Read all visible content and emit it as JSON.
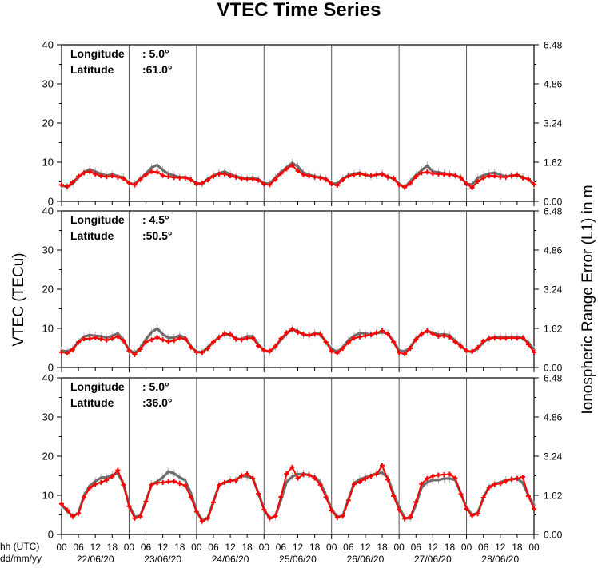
{
  "title": "VTEC Time Series",
  "left_axis_label": "VTEC (TECu)",
  "right_axis_label": "Ionospheric Range Error (L1) in m",
  "x_axis_caption_top": "hh (UTC)",
  "x_axis_caption_bottom": "dd/mm/yy",
  "chart_data": [
    {
      "type": "line",
      "panel": 1,
      "longitude_label": "Longitude",
      "longitude_value": ":   5.0°",
      "latitude_label": "Latitude",
      "latitude_value": ":61.0°",
      "ylim": [
        0,
        40
      ],
      "y_ticks": [
        "0",
        "10",
        "20",
        "30",
        "40"
      ],
      "right_ticks": [
        "0.00",
        "1.62",
        "3.24",
        "4.86",
        "6.48"
      ],
      "xlim_hours": [
        0,
        168
      ],
      "hour_ticks": [
        "00",
        "06",
        "12",
        "18",
        "00",
        "06",
        "12",
        "18",
        "00",
        "06",
        "12",
        "18",
        "00",
        "06",
        "12",
        "18",
        "00",
        "06",
        "12",
        "18",
        "00",
        "06",
        "12",
        "18",
        "00",
        "06",
        "12",
        "18",
        "00"
      ],
      "day_labels": [
        "22/06/20",
        "23/06/20",
        "24/06/20",
        "25/06/20",
        "26/06/20",
        "27/06/20",
        "28/06/20"
      ],
      "series": [
        {
          "key": "reference",
          "color": "#6e6e6e",
          "values": [
            4,
            3.7,
            4.6,
            6.2,
            7.4,
            8.2,
            7.6,
            7,
            6.6,
            6.9,
            6.4,
            6.1,
            4.6,
            4.4,
            5.8,
            7.1,
            8.6,
            9.3,
            8,
            7,
            6.6,
            6.1,
            6.2,
            5.6,
            4.6,
            4.5,
            5.7,
            6.6,
            7.2,
            7.6,
            6.9,
            6.4,
            6,
            5.8,
            6.1,
            5.6,
            4.6,
            4.6,
            6,
            7.5,
            8.6,
            9.8,
            8.9,
            7.3,
            6.8,
            6.4,
            6.1,
            5.8,
            4.5,
            4.6,
            5.8,
            6.6,
            7,
            7.3,
            6.7,
            6.4,
            6.8,
            7.1,
            6.3,
            5.8,
            4.5,
            3.6,
            5.1,
            6.7,
            7.9,
            9.1,
            7.6,
            7.4,
            7.1,
            7,
            6.6,
            6.1,
            4.5,
            4.3,
            6,
            6.6,
            7.1,
            7.3,
            6.8,
            6.3,
            6.6,
            6.6,
            6.2,
            5.7,
            4.3
          ]
        },
        {
          "key": "vtec",
          "color": "#ff0000",
          "values": [
            4.2,
            3.8,
            4.9,
            6.4,
            7.3,
            7.6,
            7,
            6.5,
            6.3,
            6.5,
            6.2,
            5.8,
            4.7,
            4.2,
            5.6,
            6.8,
            7.6,
            7.5,
            6.6,
            6.3,
            6.1,
            6,
            6,
            5.5,
            4.5,
            4.6,
            5.5,
            6.4,
            7,
            7,
            6.5,
            6.2,
            5.8,
            5.7,
            5.7,
            5.4,
            4.4,
            4.2,
            5.6,
            7.1,
            8.3,
            9.2,
            7.8,
            6.8,
            6.5,
            6.2,
            6,
            5.6,
            4.5,
            4.1,
            5.5,
            6.5,
            6.8,
            7,
            6.8,
            6.6,
            6.8,
            6.9,
            6.2,
            5.9,
            4.2,
            3.6,
            4.6,
            6.3,
            7.3,
            7.5,
            7.1,
            7,
            6.9,
            6.8,
            6.6,
            6,
            4.5,
            3.5,
            5.1,
            6,
            6.5,
            6.5,
            6.2,
            6.2,
            6.5,
            6.8,
            6,
            5.7,
            4.3
          ]
        }
      ]
    },
    {
      "type": "line",
      "panel": 2,
      "longitude_label": "Longitude",
      "longitude_value": ":   4.5°",
      "latitude_label": "Latitude",
      "latitude_value": ":50.5°",
      "ylim": [
        0,
        40
      ],
      "y_ticks": [
        "0",
        "10",
        "20",
        "30",
        "40"
      ],
      "right_ticks": [
        "0.00",
        "1.62",
        "3.24",
        "4.86",
        "6.48"
      ],
      "xlim_hours": [
        0,
        168
      ],
      "series": [
        {
          "key": "reference",
          "color": "#6e6e6e",
          "values": [
            4.3,
            4.1,
            4.8,
            6.6,
            7.9,
            8.3,
            8.1,
            8,
            7.6,
            8.1,
            8.7,
            7,
            4.5,
            3.7,
            5,
            7.2,
            9,
            10,
            8.5,
            7.6,
            7.6,
            8.2,
            7.6,
            5.4,
            4,
            3.9,
            5.1,
            6.6,
            7.7,
            8.5,
            8.4,
            7.4,
            7.2,
            8,
            8,
            5.8,
            4.4,
            4,
            5.3,
            7.1,
            8.6,
            9.8,
            9.3,
            8.4,
            8.2,
            8.7,
            8.6,
            6.5,
            4.8,
            4,
            5.2,
            7,
            8.1,
            8.8,
            8.7,
            8.4,
            8.8,
            9,
            8.7,
            6.7,
            4.4,
            4.1,
            5.2,
            7.3,
            8.7,
            9.3,
            8.9,
            8.4,
            8.5,
            8.2,
            6.8,
            5.6,
            4.2,
            4,
            4.9,
            6.5,
            7.4,
            7.8,
            7.9,
            7.8,
            7.8,
            7.9,
            7.5,
            6.4,
            4.5
          ]
        },
        {
          "key": "vtec",
          "color": "#ff0000",
          "values": [
            3.9,
            3.7,
            4.6,
            6.5,
            7.3,
            7.4,
            7.6,
            7.3,
            7,
            7.4,
            7.9,
            6.8,
            4.3,
            3.3,
            4.7,
            6.5,
            7.1,
            7.7,
            7.1,
            6.6,
            6.9,
            7.5,
            7.3,
            5.2,
            3.9,
            3.8,
            4.9,
            6.5,
            7.7,
            8.7,
            8.5,
            7.3,
            7.1,
            7.5,
            7.5,
            5.5,
            4.4,
            4.2,
            5.4,
            7.4,
            8.9,
            9.8,
            9,
            8.5,
            8.3,
            8.6,
            8.5,
            6.5,
            4.2,
            3.7,
            4.9,
            6.4,
            7.5,
            7.8,
            8.1,
            8.4,
            8.9,
            9.4,
            8.6,
            6.5,
            3.8,
            3.5,
            4.9,
            7.2,
            8.5,
            9.4,
            8.6,
            8,
            8.1,
            7.8,
            6.5,
            5.4,
            4.3,
            4.1,
            5.1,
            6.7,
            7.4,
            7.6,
            7.5,
            7.5,
            7.6,
            7.5,
            7.6,
            5.9,
            3.9
          ]
        }
      ]
    },
    {
      "type": "line",
      "panel": 3,
      "longitude_label": "Longitude",
      "longitude_value": ":   5.0°",
      "latitude_label": "Latitude",
      "latitude_value": ":36.0°",
      "ylim": [
        0,
        40
      ],
      "y_ticks": [
        "0",
        "10",
        "20",
        "30",
        "40"
      ],
      "right_ticks": [
        "0.00",
        "1.62",
        "3.24",
        "4.86",
        "6.48"
      ],
      "xlim_hours": [
        0,
        168
      ],
      "series": [
        {
          "key": "reference",
          "color": "#6e6e6e",
          "values": [
            7.5,
            6,
            4.6,
            5.5,
            10,
            12.4,
            13.6,
            14.5,
            14.6,
            15.2,
            15.6,
            13,
            7.5,
            4.5,
            4.8,
            8.5,
            12.8,
            13.5,
            14.6,
            16.1,
            15.6,
            14.6,
            13.8,
            10.5,
            6,
            3.5,
            4.1,
            8.4,
            12.6,
            13.2,
            13.9,
            13.9,
            15,
            14.8,
            14.4,
            10.5,
            6.5,
            4,
            4.6,
            8.8,
            13.4,
            14.8,
            15.4,
            15.5,
            15.2,
            14.8,
            13.3,
            10,
            6.5,
            4.5,
            4.8,
            8.9,
            13.1,
            14.1,
            14.6,
            15.1,
            15.6,
            15.8,
            14.5,
            10.5,
            7,
            4.2,
            4.1,
            7.6,
            12,
            13.4,
            13.9,
            13.9,
            14.3,
            14.3,
            13.9,
            10.5,
            6.8,
            5,
            5.5,
            9.3,
            12.2,
            12.9,
            13.3,
            13.9,
            14.1,
            14.3,
            13.2,
            10,
            7.5
          ]
        },
        {
          "key": "vtec",
          "color": "#ff0000",
          "values": [
            7.8,
            6.2,
            4.6,
            5.4,
            9.5,
            11.9,
            12.8,
            13.3,
            13.9,
            14.8,
            16.4,
            12.7,
            7.2,
            4.1,
            4.6,
            8.4,
            12.7,
            13.2,
            13.3,
            13.5,
            13.6,
            13,
            12.5,
            9.5,
            5.8,
            3.4,
            4.2,
            8.2,
            12.6,
            13.3,
            13.7,
            13.8,
            15,
            15.5,
            14.3,
            10.4,
            6.3,
            4.2,
            4.7,
            9.6,
            15.5,
            17.2,
            14.4,
            15.3,
            15.2,
            14.4,
            12.7,
            9.5,
            6.1,
            4.3,
            4.7,
            8.7,
            12.8,
            13.5,
            14.2,
            14.9,
            15.4,
            17.6,
            14,
            9.8,
            6.3,
            4,
            4.5,
            8.3,
            12.9,
            14.3,
            14.9,
            15.2,
            15.3,
            15.4,
            14.4,
            10.3,
            6.5,
            4.8,
            5.3,
            9.4,
            12,
            12.8,
            13,
            13.6,
            14.1,
            14.3,
            14.7,
            9.8,
            6.5
          ]
        }
      ]
    }
  ]
}
